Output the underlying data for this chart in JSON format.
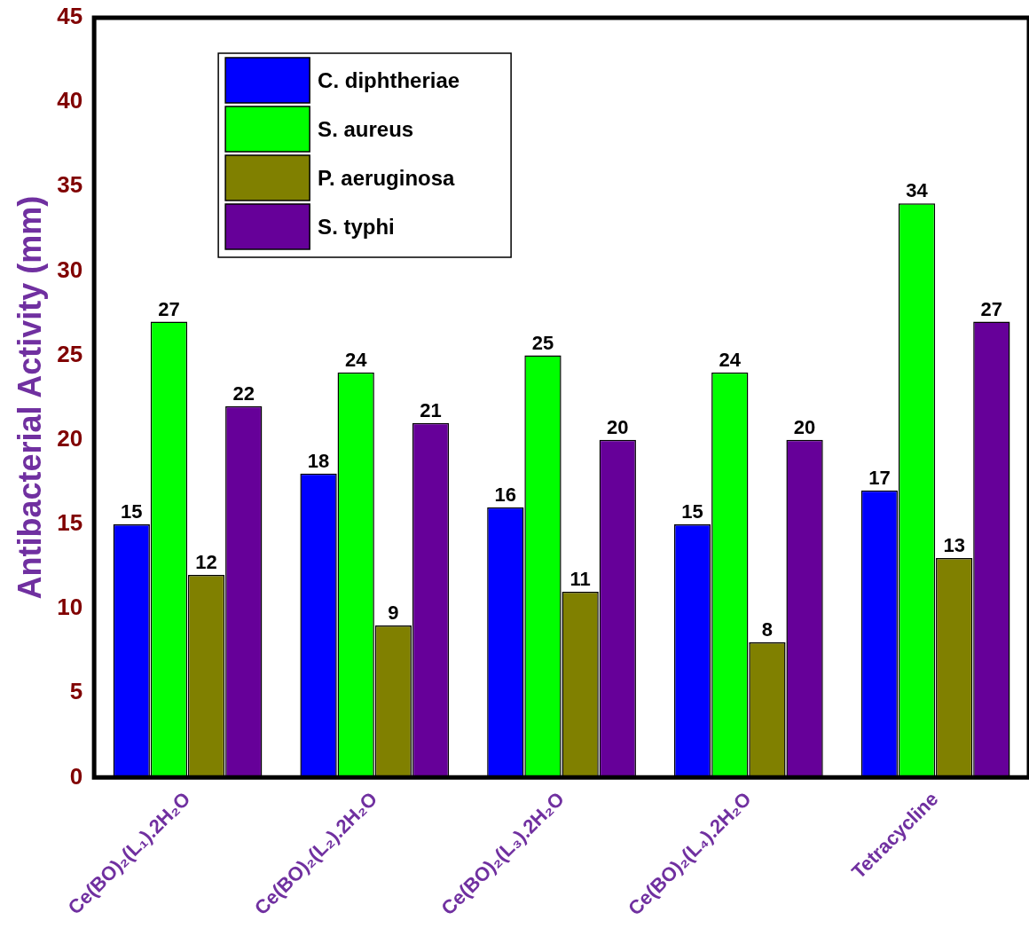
{
  "chart_data": {
    "type": "bar",
    "ylabel": "Antibacterial Activity (mm)",
    "categories": [
      "Ce(BO)₂(L₁).2H₂O",
      "Ce(BO)₂(L₂).2H₂O",
      "Ce(BO)₂(L₃).2H₂O",
      "Ce(BO)₂(L₄).2H₂O",
      "Tetracycline"
    ],
    "series": [
      {
        "name": "C. diphtheriae",
        "color": "#0000ff",
        "values": [
          15,
          18,
          16,
          15,
          17
        ]
      },
      {
        "name": "S. aureus",
        "color": "#00ff00",
        "values": [
          27,
          24,
          25,
          24,
          34
        ]
      },
      {
        "name": "P. aeruginosa",
        "color": "#808000",
        "values": [
          12,
          9,
          11,
          8,
          13
        ]
      },
      {
        "name": "S. typhi",
        "color": "#660099",
        "values": [
          22,
          21,
          20,
          20,
          27
        ]
      }
    ],
    "ylim": [
      0,
      45
    ],
    "yticks": [
      0,
      5,
      10,
      15,
      20,
      25,
      30,
      35,
      40,
      45
    ],
    "grid": false,
    "legend": "top left",
    "data_labels": true
  }
}
